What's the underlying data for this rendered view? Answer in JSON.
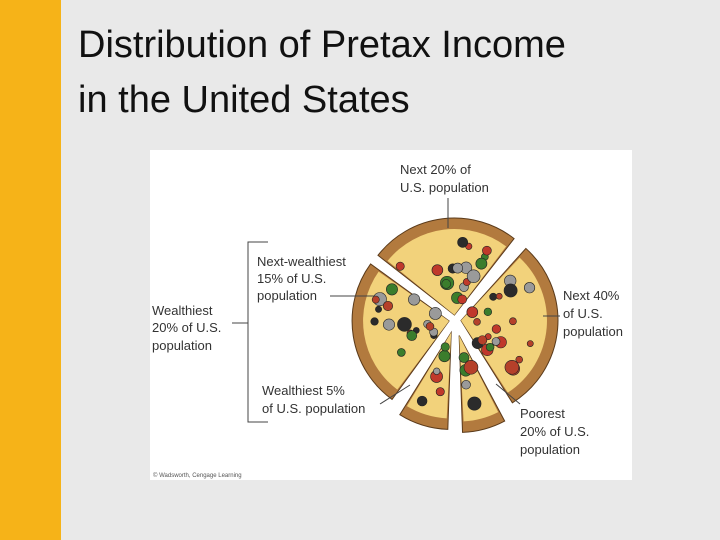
{
  "title": {
    "lines": [
      "Distribution of Pretax Income",
      "in the United States"
    ]
  },
  "labels": {
    "next20": [
      "Next 20% of",
      "U.S. population"
    ],
    "next_wealthiest": [
      "Next-wealthiest",
      "15% of U.S.",
      "population"
    ],
    "wealthiest20": [
      "Wealthiest",
      "20% of U.S.",
      "population"
    ],
    "wealthiest5": [
      "Wealthiest 5%",
      "of U.S. population"
    ],
    "next40": [
      "Next 40%",
      "of U.S.",
      "population"
    ],
    "poorest": [
      "Poorest",
      "20% of U.S.",
      "population"
    ]
  },
  "credit": "© Wadsworth, Cengage Learning"
}
